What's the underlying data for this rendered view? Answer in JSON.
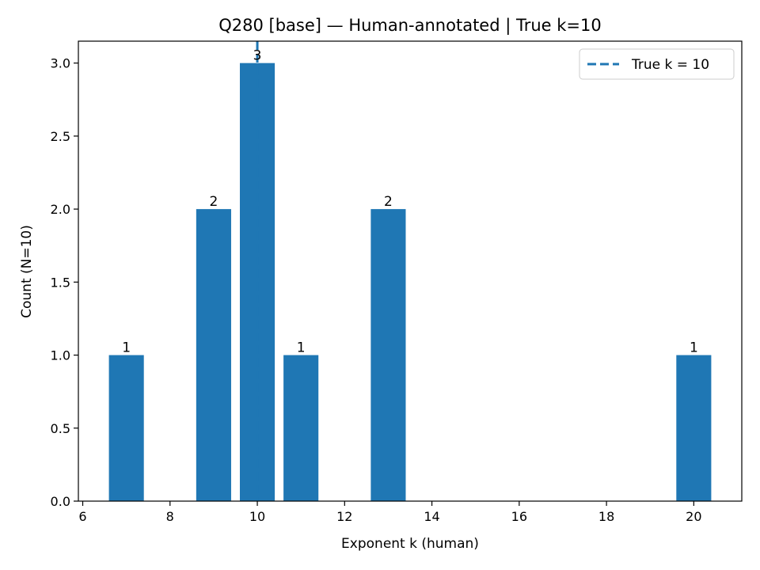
{
  "chart_data": {
    "type": "bar",
    "title": "Q280 [base] — Human-annotated | True k=10",
    "xlabel": "Exponent k (human)",
    "ylabel": "Count (N=10)",
    "x": [
      7,
      9,
      10,
      11,
      13,
      20
    ],
    "values": [
      1,
      2,
      3,
      1,
      2,
      1
    ],
    "value_labels": [
      "1",
      "2",
      "3",
      "1",
      "2",
      "1"
    ],
    "bar_width": 0.8,
    "xlim": [
      5.9,
      21.1
    ],
    "ylim": [
      0,
      3.15
    ],
    "xticks": [
      6,
      8,
      10,
      12,
      14,
      16,
      18,
      20
    ],
    "xtick_labels": [
      "6",
      "8",
      "10",
      "12",
      "14",
      "16",
      "18",
      "20"
    ],
    "yticks": [
      0,
      0.5,
      1,
      1.5,
      2,
      2.5,
      3
    ],
    "ytick_labels": [
      "0.0",
      "0.5",
      "1.0",
      "1.5",
      "2.0",
      "2.5",
      "3.0"
    ],
    "reference_line": {
      "x": 10,
      "style": "dashed",
      "label": "True k = 10"
    },
    "legend": {
      "position": "top-right",
      "entries": [
        "True k = 10"
      ]
    },
    "grid": false,
    "colors": {
      "bar": "#1f77b4",
      "reference_line": "#1f77b4"
    }
  }
}
